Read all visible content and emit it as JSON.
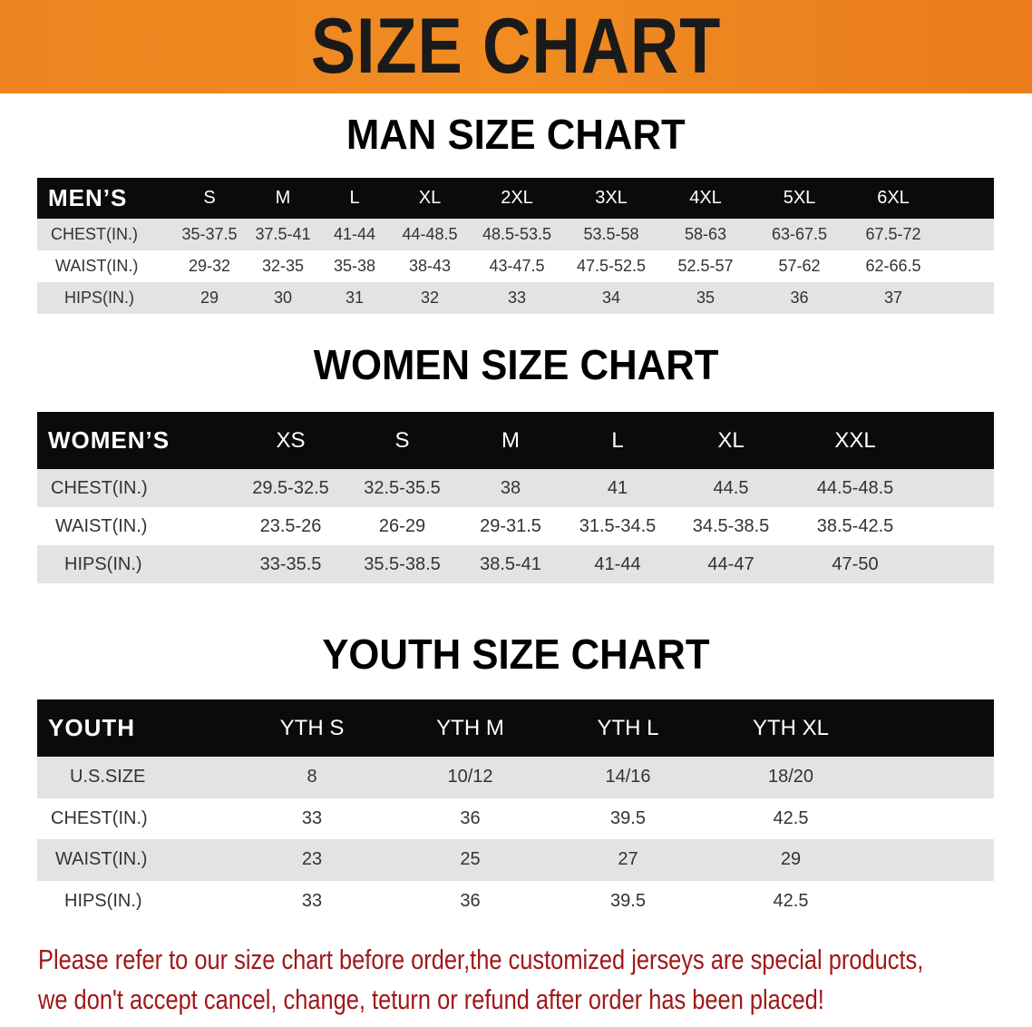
{
  "banner_title": "SIZE CHART",
  "colors": {
    "banner": "#ee8420",
    "header_row": "#0b0b0b",
    "stripe": "#e3e3e3",
    "note": "#a01818"
  },
  "men": {
    "title": "MAN SIZE CHART",
    "header_label": "MEN’S",
    "sizes": [
      "S",
      "M",
      "L",
      "XL",
      "2XL",
      "3XL",
      "4XL",
      "5XL",
      "6XL"
    ],
    "rows": [
      {
        "label": "CHEST(IN.)",
        "values": [
          "35-37.5",
          "37.5-41",
          "41-44",
          "44-48.5",
          "48.5-53.5",
          "53.5-58",
          "58-63",
          "63-67.5",
          "67.5-72"
        ]
      },
      {
        "label": "WAIST(IN.)",
        "values": [
          "29-32",
          "32-35",
          "35-38",
          "38-43",
          "43-47.5",
          "47.5-52.5",
          "52.5-57",
          "57-62",
          "62-66.5"
        ]
      },
      {
        "label": "HIPS(IN.)",
        "values": [
          "29",
          "30",
          "31",
          "32",
          "33",
          "34",
          "35",
          "36",
          "37"
        ]
      }
    ]
  },
  "women": {
    "title": "WOMEN SIZE CHART",
    "header_label": "WOMEN’S",
    "sizes": [
      "XS",
      "S",
      "M",
      "L",
      "XL",
      "XXL"
    ],
    "rows": [
      {
        "label": "CHEST(IN.)",
        "values": [
          "29.5-32.5",
          "32.5-35.5",
          "38",
          "41",
          "44.5",
          "44.5-48.5"
        ]
      },
      {
        "label": "WAIST(IN.)",
        "values": [
          "23.5-26",
          "26-29",
          "29-31.5",
          "31.5-34.5",
          "34.5-38.5",
          "38.5-42.5"
        ]
      },
      {
        "label": "HIPS(IN.)",
        "values": [
          "33-35.5",
          "35.5-38.5",
          "38.5-41",
          "41-44",
          "44-47",
          "47-50"
        ]
      }
    ]
  },
  "youth": {
    "title": "YOUTH SIZE CHART",
    "header_label": "YOUTH",
    "sizes": [
      "YTH S",
      "YTH M",
      "YTH L",
      "YTH XL"
    ],
    "rows": [
      {
        "label": "U.S.SIZE",
        "values": [
          "8",
          "10/12",
          "14/16",
          "18/20"
        ]
      },
      {
        "label": "CHEST(IN.)",
        "values": [
          "33",
          "36",
          "39.5",
          "42.5"
        ]
      },
      {
        "label": "WAIST(IN.)",
        "values": [
          "23",
          "25",
          "27",
          "29"
        ]
      },
      {
        "label": "HIPS(IN.)",
        "values": [
          "33",
          "36",
          "39.5",
          "42.5"
        ]
      }
    ]
  },
  "note": {
    "line1": "Please refer to our size chart before order,the customized jerseys are special products,",
    "line2": "we don't accept cancel, change, teturn or refund after order has been placed!"
  }
}
